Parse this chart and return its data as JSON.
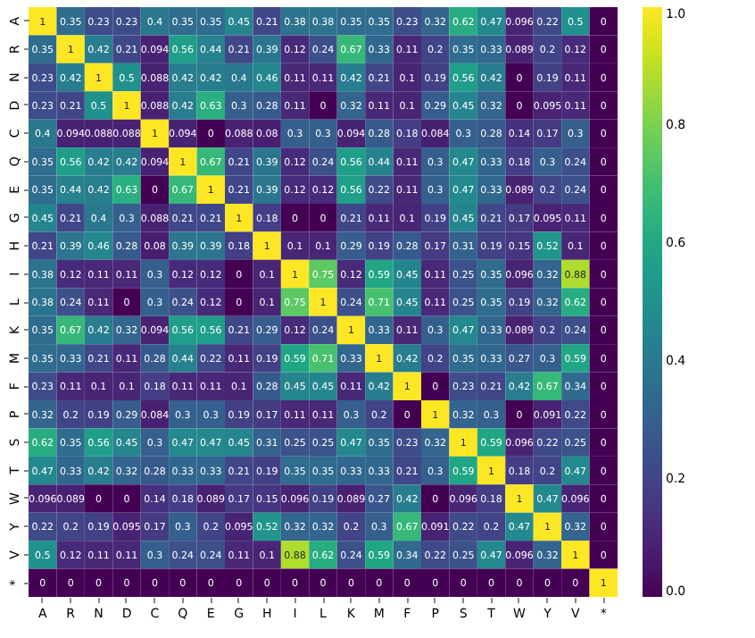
{
  "chart_data": {
    "type": "heatmap",
    "categories": [
      "A",
      "R",
      "N",
      "D",
      "C",
      "Q",
      "E",
      "G",
      "H",
      "I",
      "L",
      "K",
      "M",
      "F",
      "P",
      "S",
      "T",
      "W",
      "Y",
      "V",
      "*"
    ],
    "y_categories": [
      "A",
      "R",
      "N",
      "D",
      "C",
      "Q",
      "E",
      "G",
      "H",
      "I",
      "L",
      "K",
      "M",
      "F",
      "P",
      "S",
      "T",
      "W",
      "Y",
      "V",
      "*"
    ],
    "cells": [
      [
        1,
        0.35,
        0.23,
        0.23,
        0.4,
        0.35,
        0.35,
        0.45,
        0.21,
        0.38,
        0.38,
        0.35,
        0.35,
        0.23,
        0.32,
        0.62,
        0.47,
        0.096,
        0.22,
        0.5,
        0
      ],
      [
        0.35,
        1,
        0.42,
        0.21,
        0.094,
        0.56,
        0.44,
        0.21,
        0.39,
        0.12,
        0.24,
        0.67,
        0.33,
        0.11,
        0.2,
        0.35,
        0.33,
        0.089,
        0.2,
        0.12,
        0
      ],
      [
        0.23,
        0.42,
        1,
        0.5,
        0.088,
        0.42,
        0.42,
        0.4,
        0.46,
        0.11,
        0.11,
        0.42,
        0.21,
        0.1,
        0.19,
        0.56,
        0.42,
        0,
        0.19,
        0.11,
        0
      ],
      [
        0.23,
        0.21,
        0.5,
        1,
        0.088,
        0.42,
        0.63,
        0.3,
        0.28,
        0.11,
        0,
        0.32,
        0.11,
        0.1,
        0.29,
        0.45,
        0.32,
        0,
        0.095,
        0.11,
        0
      ],
      [
        0.4,
        0.094,
        0.088,
        0.088,
        1,
        0.094,
        0,
        0.088,
        0.08,
        0.3,
        0.3,
        0.094,
        0.28,
        0.18,
        0.084,
        0.3,
        0.28,
        0.14,
        0.17,
        0.3,
        0
      ],
      [
        0.35,
        0.56,
        0.42,
        0.42,
        0.094,
        1,
        0.67,
        0.21,
        0.39,
        0.12,
        0.24,
        0.56,
        0.44,
        0.11,
        0.3,
        0.47,
        0.33,
        0.18,
        0.3,
        0.24,
        0
      ],
      [
        0.35,
        0.44,
        0.42,
        0.63,
        0,
        0.67,
        1,
        0.21,
        0.39,
        0.12,
        0.12,
        0.56,
        0.22,
        0.11,
        0.3,
        0.47,
        0.33,
        0.089,
        0.2,
        0.24,
        0
      ],
      [
        0.45,
        0.21,
        0.4,
        0.3,
        0.088,
        0.21,
        0.21,
        1,
        0.18,
        0,
        0,
        0.21,
        0.11,
        0.1,
        0.19,
        0.45,
        0.21,
        0.17,
        0.095,
        0.11,
        0
      ],
      [
        0.21,
        0.39,
        0.46,
        0.28,
        0.08,
        0.39,
        0.39,
        0.18,
        1,
        0.1,
        0.1,
        0.29,
        0.19,
        0.28,
        0.17,
        0.31,
        0.19,
        0.15,
        0.52,
        0.1,
        0
      ],
      [
        0.38,
        0.12,
        0.11,
        0.11,
        0.3,
        0.12,
        0.12,
        0,
        0.1,
        1,
        0.75,
        0.12,
        0.59,
        0.45,
        0.11,
        0.25,
        0.35,
        0.096,
        0.32,
        0.88,
        0
      ],
      [
        0.38,
        0.24,
        0.11,
        0,
        0.3,
        0.24,
        0.12,
        0,
        0.1,
        0.75,
        1,
        0.24,
        0.71,
        0.45,
        0.11,
        0.25,
        0.35,
        0.19,
        0.32,
        0.62,
        0
      ],
      [
        0.35,
        0.67,
        0.42,
        0.32,
        0.094,
        0.56,
        0.56,
        0.21,
        0.29,
        0.12,
        0.24,
        1,
        0.33,
        0.11,
        0.3,
        0.47,
        0.33,
        0.089,
        0.2,
        0.24,
        0
      ],
      [
        0.35,
        0.33,
        0.21,
        0.11,
        0.28,
        0.44,
        0.22,
        0.11,
        0.19,
        0.59,
        0.71,
        0.33,
        1,
        0.42,
        0.2,
        0.35,
        0.33,
        0.27,
        0.3,
        0.59,
        0
      ],
      [
        0.23,
        0.11,
        0.1,
        0.1,
        0.18,
        0.11,
        0.11,
        0.1,
        0.28,
        0.45,
        0.45,
        0.11,
        0.42,
        1,
        0,
        0.23,
        0.21,
        0.42,
        0.67,
        0.34,
        0
      ],
      [
        0.32,
        0.2,
        0.19,
        0.29,
        0.084,
        0.3,
        0.3,
        0.19,
        0.17,
        0.11,
        0.11,
        0.3,
        0.2,
        0,
        1,
        0.32,
        0.3,
        0,
        0.091,
        0.22,
        0
      ],
      [
        0.62,
        0.35,
        0.56,
        0.45,
        0.3,
        0.47,
        0.47,
        0.45,
        0.31,
        0.25,
        0.25,
        0.47,
        0.35,
        0.23,
        0.32,
        1,
        0.59,
        0.096,
        0.22,
        0.25,
        0
      ],
      [
        0.47,
        0.33,
        0.42,
        0.32,
        0.28,
        0.33,
        0.33,
        0.21,
        0.19,
        0.35,
        0.35,
        0.33,
        0.33,
        0.21,
        0.3,
        0.59,
        1,
        0.18,
        0.2,
        0.47,
        0
      ],
      [
        0.096,
        0.089,
        0,
        0,
        0.14,
        0.18,
        0.089,
        0.17,
        0.15,
        0.096,
        0.19,
        0.089,
        0.27,
        0.42,
        0,
        0.096,
        0.18,
        1,
        0.47,
        0.096,
        0
      ],
      [
        0.22,
        0.2,
        0.19,
        0.095,
        0.17,
        0.3,
        0.2,
        0.095,
        0.52,
        0.32,
        0.32,
        0.2,
        0.3,
        0.67,
        0.091,
        0.22,
        0.2,
        0.47,
        1,
        0.32,
        0
      ],
      [
        0.5,
        0.12,
        0.11,
        0.11,
        0.3,
        0.24,
        0.24,
        0.11,
        0.1,
        0.88,
        0.62,
        0.24,
        0.59,
        0.34,
        0.22,
        0.25,
        0.47,
        0.096,
        0.32,
        1,
        0
      ],
      [
        0,
        0,
        0,
        0,
        0,
        0,
        0,
        0,
        0,
        0,
        0,
        0,
        0,
        0,
        0,
        0,
        0,
        0,
        0,
        0,
        1
      ]
    ],
    "clim": [
      0,
      1
    ],
    "cticks": [
      {
        "value": 0,
        "label": "0.0"
      },
      0.2,
      0.4,
      0.6,
      0.8,
      {
        "value": 1,
        "label": "1.0"
      }
    ],
    "data_labels": true
  }
}
